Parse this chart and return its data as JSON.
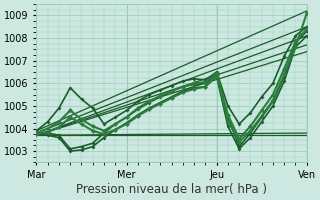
{
  "title": "Pression niveau de la mer( hPa )",
  "xlim": [
    0,
    4.0
  ],
  "ylim": [
    1002.5,
    1009.5
  ],
  "yticks": [
    1003,
    1004,
    1005,
    1006,
    1007,
    1008,
    1009
  ],
  "xtick_labels": [
    "Mar",
    "Mer",
    "Jeu",
    "Ven"
  ],
  "xtick_positions": [
    0,
    1.333,
    2.667,
    4.0
  ],
  "bg_color": "#cce8e0",
  "grid_color": "#99ccbb",
  "dc": "#1a5c2a",
  "lc": "#2e7d40",
  "straight_lines": [
    {
      "x0": 0.0,
      "y0": 1003.9,
      "x1": 4.0,
      "y1": 1009.2
    },
    {
      "x0": 0.0,
      "y0": 1003.8,
      "x1": 4.0,
      "y1": 1008.5
    },
    {
      "x0": 0.0,
      "y0": 1003.7,
      "x1": 4.0,
      "y1": 1008.1
    },
    {
      "x0": 0.0,
      "y0": 1003.7,
      "x1": 4.0,
      "y1": 1007.7
    },
    {
      "x0": 0.0,
      "y0": 1003.7,
      "x1": 4.0,
      "y1": 1007.4
    },
    {
      "x0": 0.0,
      "y0": 1003.7,
      "x1": 4.0,
      "y1": 1003.8
    },
    {
      "x0": 0.0,
      "y0": 1003.7,
      "x1": 4.0,
      "y1": 1003.7
    }
  ],
  "wavy_lines": [
    {
      "x": [
        0.0,
        0.167,
        0.333,
        0.5,
        0.667,
        0.833,
        1.0,
        1.167,
        1.333,
        1.5,
        1.667,
        1.833,
        2.0,
        2.167,
        2.333,
        2.5,
        2.667,
        2.833,
        3.0,
        3.167,
        3.333,
        3.5,
        3.667,
        3.833,
        4.0
      ],
      "y": [
        1003.9,
        1004.3,
        1004.9,
        1005.8,
        1005.3,
        1004.9,
        1004.2,
        1004.5,
        1004.8,
        1005.2,
        1005.5,
        1005.7,
        1005.9,
        1006.1,
        1006.2,
        1006.15,
        1006.5,
        1005.0,
        1004.2,
        1004.7,
        1005.4,
        1006.0,
        1007.2,
        1008.1,
        1008.5
      ],
      "lw": 1.2,
      "ms": 2.0
    },
    {
      "x": [
        0.0,
        0.167,
        0.333,
        0.5,
        0.667,
        0.833,
        1.0,
        1.167,
        1.333,
        1.5,
        1.667,
        1.833,
        2.0,
        2.167,
        2.333,
        2.5,
        2.667,
        2.833,
        3.0,
        3.167,
        3.333,
        3.5,
        3.667,
        3.833,
        4.0
      ],
      "y": [
        1003.8,
        1003.8,
        1003.7,
        1003.1,
        1003.2,
        1003.35,
        1003.8,
        1004.2,
        1004.5,
        1004.85,
        1005.15,
        1005.4,
        1005.65,
        1005.85,
        1005.95,
        1006.0,
        1006.4,
        1004.5,
        1003.2,
        1003.8,
        1004.5,
        1005.2,
        1006.3,
        1007.8,
        1008.3
      ],
      "lw": 1.2,
      "ms": 2.0
    },
    {
      "x": [
        0.0,
        0.167,
        0.333,
        0.5,
        0.667,
        0.833,
        1.0,
        1.167,
        1.333,
        1.5,
        1.667,
        1.833,
        2.0,
        2.167,
        2.333,
        2.5,
        2.667,
        2.833,
        3.0,
        3.167,
        3.333,
        3.5,
        3.667,
        3.833,
        4.0
      ],
      "y": [
        1003.75,
        1003.7,
        1003.6,
        1003.0,
        1003.05,
        1003.2,
        1003.6,
        1003.95,
        1004.25,
        1004.6,
        1004.9,
        1005.15,
        1005.4,
        1005.65,
        1005.8,
        1005.85,
        1006.3,
        1004.1,
        1003.1,
        1003.6,
        1004.3,
        1005.0,
        1006.1,
        1007.6,
        1008.1
      ],
      "lw": 1.2,
      "ms": 2.0
    },
    {
      "x": [
        0.0,
        0.167,
        0.333,
        0.5,
        0.667,
        0.833,
        1.0,
        1.167,
        1.333,
        1.5,
        1.667,
        1.833,
        2.0,
        2.167,
        2.333,
        2.5,
        2.667,
        2.833,
        3.0,
        3.167,
        3.333,
        3.5,
        3.667,
        3.833,
        4.0
      ],
      "y": [
        1003.8,
        1004.0,
        1004.3,
        1004.8,
        1004.4,
        1004.1,
        1003.9,
        1004.2,
        1004.5,
        1004.9,
        1005.2,
        1005.45,
        1005.65,
        1005.85,
        1006.0,
        1006.05,
        1006.45,
        1004.6,
        1003.55,
        1004.1,
        1004.8,
        1005.5,
        1006.65,
        1007.85,
        1008.4
      ],
      "lw": 1.5,
      "ms": 2.5
    },
    {
      "x": [
        0.0,
        0.167,
        0.333,
        0.5,
        0.667,
        0.833,
        1.0,
        1.167,
        1.333,
        1.5,
        1.667,
        1.833,
        2.0,
        2.167,
        2.333,
        2.5,
        2.667,
        2.833,
        3.0,
        3.167,
        3.333,
        3.5,
        3.667,
        3.833,
        4.0
      ],
      "y": [
        1003.75,
        1003.85,
        1004.05,
        1004.5,
        1004.2,
        1003.9,
        1003.75,
        1003.95,
        1004.2,
        1004.55,
        1004.85,
        1005.1,
        1005.35,
        1005.6,
        1005.75,
        1005.85,
        1006.35,
        1004.35,
        1003.4,
        1003.9,
        1004.55,
        1005.25,
        1006.4,
        1007.6,
        1009.1
      ],
      "lw": 1.5,
      "ms": 2.5
    }
  ],
  "vlines": [
    0.0,
    1.333,
    2.667,
    4.0
  ],
  "font_size_label": 8.5,
  "font_size_tick": 7
}
